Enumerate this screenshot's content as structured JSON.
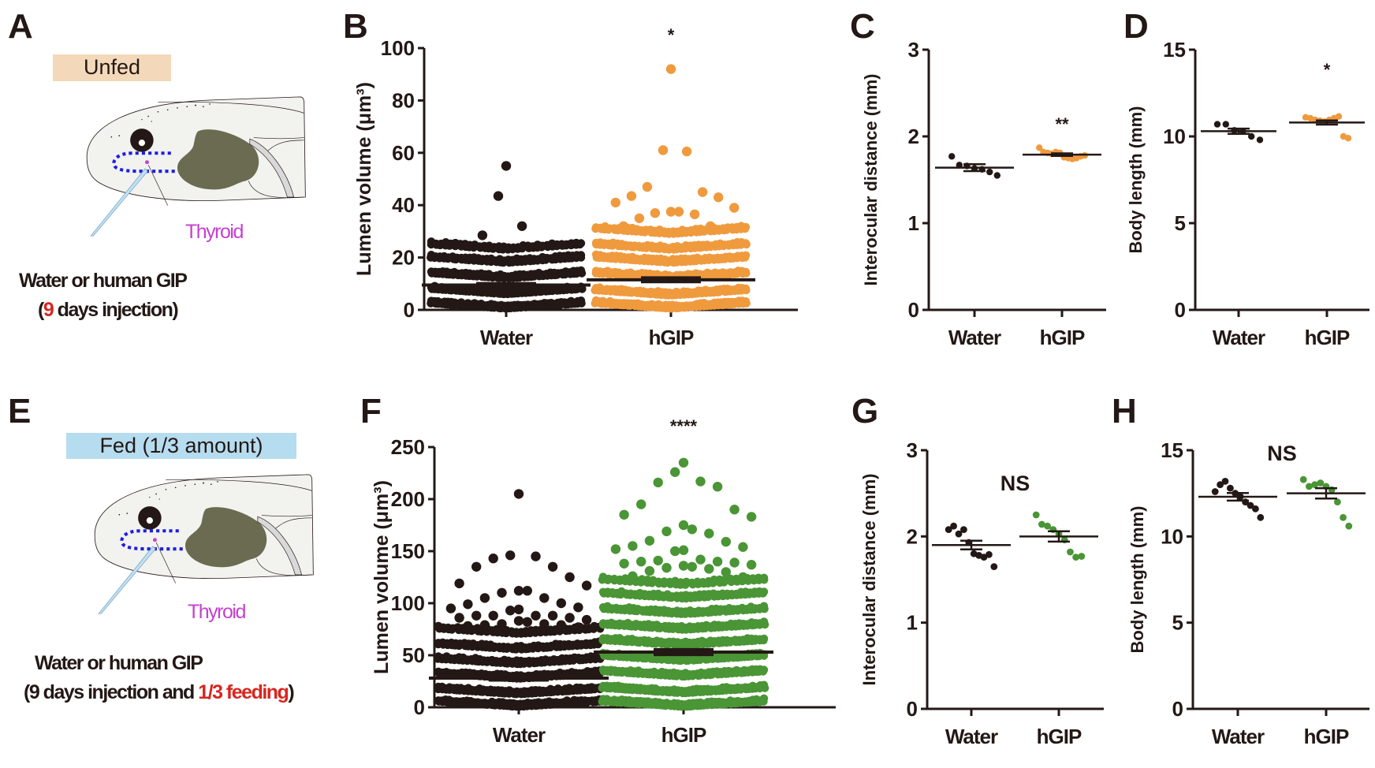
{
  "figure": {
    "panel_letters": [
      "A",
      "B",
      "C",
      "D",
      "E",
      "F",
      "G",
      "H"
    ],
    "colors": {
      "black": "#231815",
      "orange": "#f09a3e",
      "green": "#4a9535",
      "unfed_box": "#f3d9b9",
      "fed_box": "#b6dcf0",
      "thyroid": "#c63fd0",
      "highlight_red": "#d7261f",
      "dotted_outline": "#1e1ee0",
      "tadpole_body": "#f2f2ee",
      "gut": "#6b6b52",
      "needle": "#bfe0f4"
    }
  },
  "panelA": {
    "condition": "Unfed",
    "thyroid_label": "Thyroid",
    "caption_line1": "Water or human GIP",
    "caption_line2_pre": "(",
    "caption_line2_red": "9",
    "caption_line2_post": " days injection)"
  },
  "panelE": {
    "condition": "Fed (1/3 amount)",
    "thyroid_label": "Thyroid",
    "caption_line1": "Water or human GIP",
    "caption_line2_pre": "(9 days injection and ",
    "caption_line2_red": "1/3 feeding",
    "caption_line2_post": ")"
  },
  "chart_data": [
    {
      "panel": "B",
      "type": "scatter",
      "subtype": "beeswarm with mean and SEM",
      "ylabel": "Lumen volume (μm³)",
      "ylim": [
        0,
        100
      ],
      "yticks": [
        0,
        20,
        40,
        60,
        80,
        100
      ],
      "categories": [
        "Water",
        "hGIP"
      ],
      "significance": "*",
      "series": [
        {
          "name": "Water",
          "color": "black",
          "mean": 9.5,
          "sem": 0.4,
          "bands": [
            {
              "value": 1.5,
              "count": 46
            },
            {
              "value": 7,
              "count": 44
            },
            {
              "value": 13,
              "count": 40
            },
            {
              "value": 19,
              "count": 36
            },
            {
              "value": 24,
              "count": 32
            }
          ],
          "outliers": [
            55,
            43.5,
            32,
            28.5,
            24.5,
            24.5
          ]
        },
        {
          "name": "hGIP",
          "color": "orange",
          "mean": 11.5,
          "sem": 0.6,
          "bands": [
            {
              "value": 1.5,
              "count": 44
            },
            {
              "value": 6.5,
              "count": 42
            },
            {
              "value": 13,
              "count": 40
            },
            {
              "value": 19,
              "count": 38
            },
            {
              "value": 24,
              "count": 36
            },
            {
              "value": 30,
              "count": 34
            }
          ],
          "outliers": [
            92,
            61,
            60.5,
            47,
            45,
            43.5,
            43,
            41,
            39,
            37.5,
            37.5,
            37,
            36.5,
            35,
            32,
            32
          ]
        }
      ]
    },
    {
      "panel": "C",
      "type": "scatter",
      "subtype": "dot plot with mean and SEM",
      "ylabel": "Interocular distance (mm)",
      "ylim": [
        0,
        3
      ],
      "yticks": [
        0,
        1,
        2,
        3
      ],
      "categories": [
        "Water",
        "hGIP"
      ],
      "significance": "**",
      "series": [
        {
          "name": "Water",
          "color": "black",
          "mean": 1.64,
          "sem": 0.04,
          "values": [
            1.77,
            1.67,
            1.66,
            1.63,
            1.62,
            1.59,
            1.55
          ]
        },
        {
          "name": "hGIP",
          "color": "orange",
          "mean": 1.79,
          "sem": 0.015,
          "values": [
            1.87,
            1.82,
            1.81,
            1.8,
            1.82,
            1.81,
            1.76,
            1.75,
            1.74,
            1.75,
            1.77,
            1.78
          ]
        }
      ]
    },
    {
      "panel": "D",
      "type": "scatter",
      "subtype": "dot plot with mean and SEM",
      "ylabel": "Body length (mm)",
      "ylim": [
        0,
        15
      ],
      "yticks": [
        0,
        5,
        10,
        15
      ],
      "categories": [
        "Water",
        "hGIP"
      ],
      "significance": "*",
      "series": [
        {
          "name": "Water",
          "color": "black",
          "mean": 10.3,
          "sem": 0.15,
          "values": [
            10.7,
            10.7,
            10.35,
            10.3,
            10.0,
            9.8
          ]
        },
        {
          "name": "hGIP",
          "color": "orange",
          "mean": 10.8,
          "sem": 0.12,
          "values": [
            11.1,
            11.05,
            10.95,
            10.9,
            10.85,
            10.95,
            11.05,
            11.15,
            10.0,
            9.9
          ]
        }
      ]
    },
    {
      "panel": "F",
      "type": "scatter",
      "subtype": "beeswarm with mean and SEM",
      "ylabel": "Lumen volume (μm³)",
      "ylim": [
        0,
        250
      ],
      "yticks": [
        0,
        50,
        100,
        150,
        200,
        250
      ],
      "categories": [
        "Water",
        "hGIP"
      ],
      "significance": "****",
      "series": [
        {
          "name": "Water",
          "color": "black",
          "mean": 28,
          "sem": 1.5,
          "bands": [
            {
              "value": 3,
              "count": 46
            },
            {
              "value": 15,
              "count": 44
            },
            {
              "value": 30,
              "count": 42
            },
            {
              "value": 44,
              "count": 40
            },
            {
              "value": 58,
              "count": 38
            },
            {
              "value": 73,
              "count": 34
            }
          ],
          "outliers": [
            205,
            146,
            145,
            143,
            135,
            135,
            125,
            119,
            117,
            112,
            112,
            110,
            105,
            105,
            100,
            99,
            96,
            95,
            94,
            93,
            88,
            88,
            88,
            88,
            86,
            86,
            84,
            83,
            82,
            80,
            80,
            79,
            79,
            78,
            77
          ]
        },
        {
          "name": "hGIP",
          "color": "green",
          "mean": 53,
          "sem": 2,
          "bands": [
            {
              "value": 3,
              "count": 44
            },
            {
              "value": 16,
              "count": 44
            },
            {
              "value": 32,
              "count": 42
            },
            {
              "value": 47,
              "count": 42
            },
            {
              "value": 62,
              "count": 40
            },
            {
              "value": 77,
              "count": 40
            },
            {
              "value": 92,
              "count": 38
            },
            {
              "value": 107,
              "count": 36
            },
            {
              "value": 120,
              "count": 30
            }
          ],
          "outliers": [
            235,
            226,
            217,
            216,
            212,
            195,
            190,
            185,
            183,
            175,
            171,
            169,
            167,
            160,
            159,
            155,
            154,
            152,
            151,
            150,
            142,
            141,
            140,
            140,
            139,
            138,
            137,
            136,
            135,
            134,
            133,
            131,
            130,
            126,
            125
          ]
        }
      ]
    },
    {
      "panel": "G",
      "type": "scatter",
      "subtype": "dot plot with mean and SEM",
      "ylabel": "Interocular distance (mm)",
      "ylim": [
        0,
        3
      ],
      "yticks": [
        0,
        1,
        2,
        3
      ],
      "categories": [
        "Water",
        "hGIP"
      ],
      "significance": "NS",
      "series": [
        {
          "name": "Water",
          "color": "black",
          "mean": 1.9,
          "sem": 0.05,
          "values": [
            2.08,
            2.12,
            2.03,
            2.08,
            1.93,
            1.8,
            1.78,
            1.76,
            1.79,
            1.65
          ]
        },
        {
          "name": "hGIP",
          "color": "green",
          "mean": 2.0,
          "sem": 0.06,
          "values": [
            2.25,
            2.14,
            2.12,
            2.08,
            2.03,
            1.96,
            1.82,
            1.76,
            1.77
          ]
        }
      ]
    },
    {
      "panel": "H",
      "type": "scatter",
      "subtype": "dot plot with mean and SEM",
      "ylabel": "Body length (mm)",
      "ylim": [
        0,
        15
      ],
      "yticks": [
        0,
        5,
        10,
        15
      ],
      "categories": [
        "Water",
        "hGIP"
      ],
      "significance": "NS",
      "series": [
        {
          "name": "Water",
          "color": "black",
          "mean": 12.3,
          "sem": 0.22,
          "values": [
            12.6,
            13.0,
            13.2,
            12.8,
            12.5,
            12.3,
            12.0,
            11.8,
            11.6,
            11.1
          ]
        },
        {
          "name": "hGIP",
          "color": "green",
          "mean": 12.5,
          "sem": 0.3,
          "values": [
            13.3,
            12.9,
            13.0,
            13.1,
            12.9,
            12.7,
            12.0,
            11.1,
            10.6
          ]
        }
      ]
    }
  ]
}
